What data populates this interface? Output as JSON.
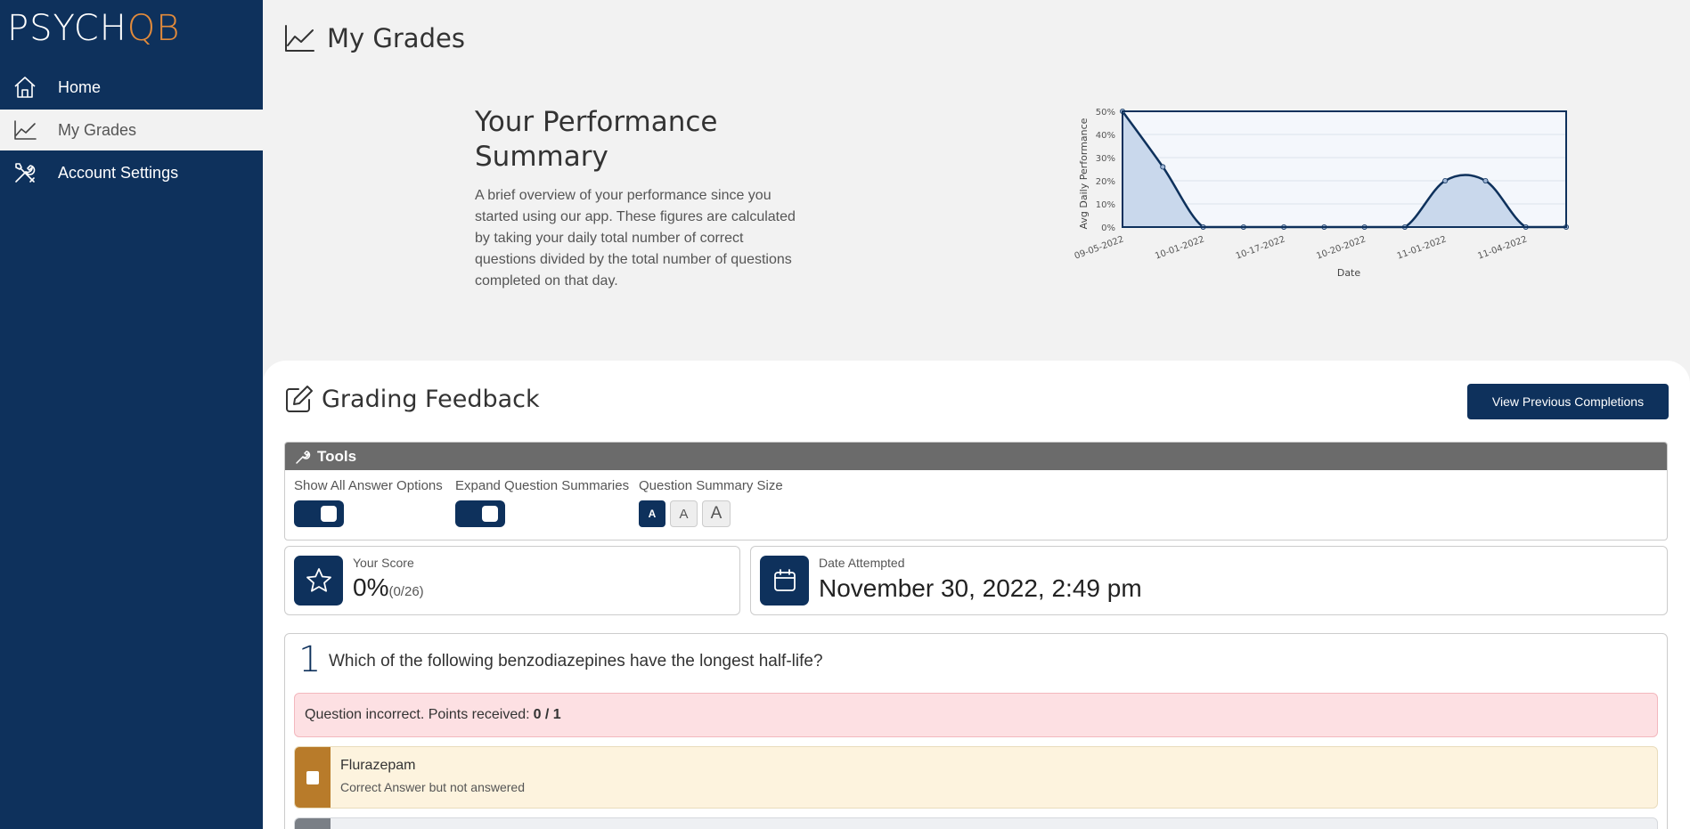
{
  "brand": {
    "logo_part1": "PSYCH",
    "logo_part2": "QB",
    "accent": "#e38b3b",
    "primary": "#0e315c"
  },
  "sidebar": {
    "items": [
      {
        "label": "Home",
        "icon": "home-icon"
      },
      {
        "label": "My Grades",
        "icon": "line-chart-icon",
        "active": true
      },
      {
        "label": "Account Settings",
        "icon": "tools-icon"
      }
    ]
  },
  "page": {
    "title": "My Grades"
  },
  "summary": {
    "title": "Your Performance Summary",
    "description": "A brief overview of your performance since you started using our app. These figures are calculated by taking your daily total number of correct questions divided by the total number of questions completed on that day."
  },
  "chart_data": {
    "type": "area",
    "xlabel": "Date",
    "ylabel": "Avg Daily Performance",
    "ylim": [
      0,
      50
    ],
    "yticks": [
      "0%",
      "10%",
      "20%",
      "30%",
      "40%",
      "50%"
    ],
    "x_tick_labels": [
      "09-05-2022",
      "10-01-2022",
      "10-17-2022",
      "10-20-2022",
      "11-01-2022",
      "11-04-2022"
    ],
    "grid": true,
    "values": [
      50,
      26,
      0,
      0,
      0,
      0,
      0,
      0,
      20,
      20,
      0,
      0
    ]
  },
  "grading": {
    "title": "Grading Feedback",
    "prev_button": "View Previous Completions",
    "tools_title": "Tools",
    "tools": {
      "show_all_label": "Show All Answer Options",
      "expand_label": "Expand Question Summaries",
      "size_label": "Question Summary Size",
      "size_options": [
        "A",
        "A",
        "A"
      ]
    },
    "score_label": "Your Score",
    "score_value": "0%",
    "score_fraction": "(0/26)",
    "date_label": "Date Attempted",
    "date_value": "November 30, 2022, 2:49 pm"
  },
  "question": {
    "number": "1",
    "text": "Which of the following benzodiazepines have the longest half-life?",
    "alert_text": "Question incorrect. Points received:",
    "alert_points": "0 / 1",
    "answers": [
      {
        "label": "Flurazepam",
        "sub": "Correct Answer but not answered"
      }
    ]
  }
}
